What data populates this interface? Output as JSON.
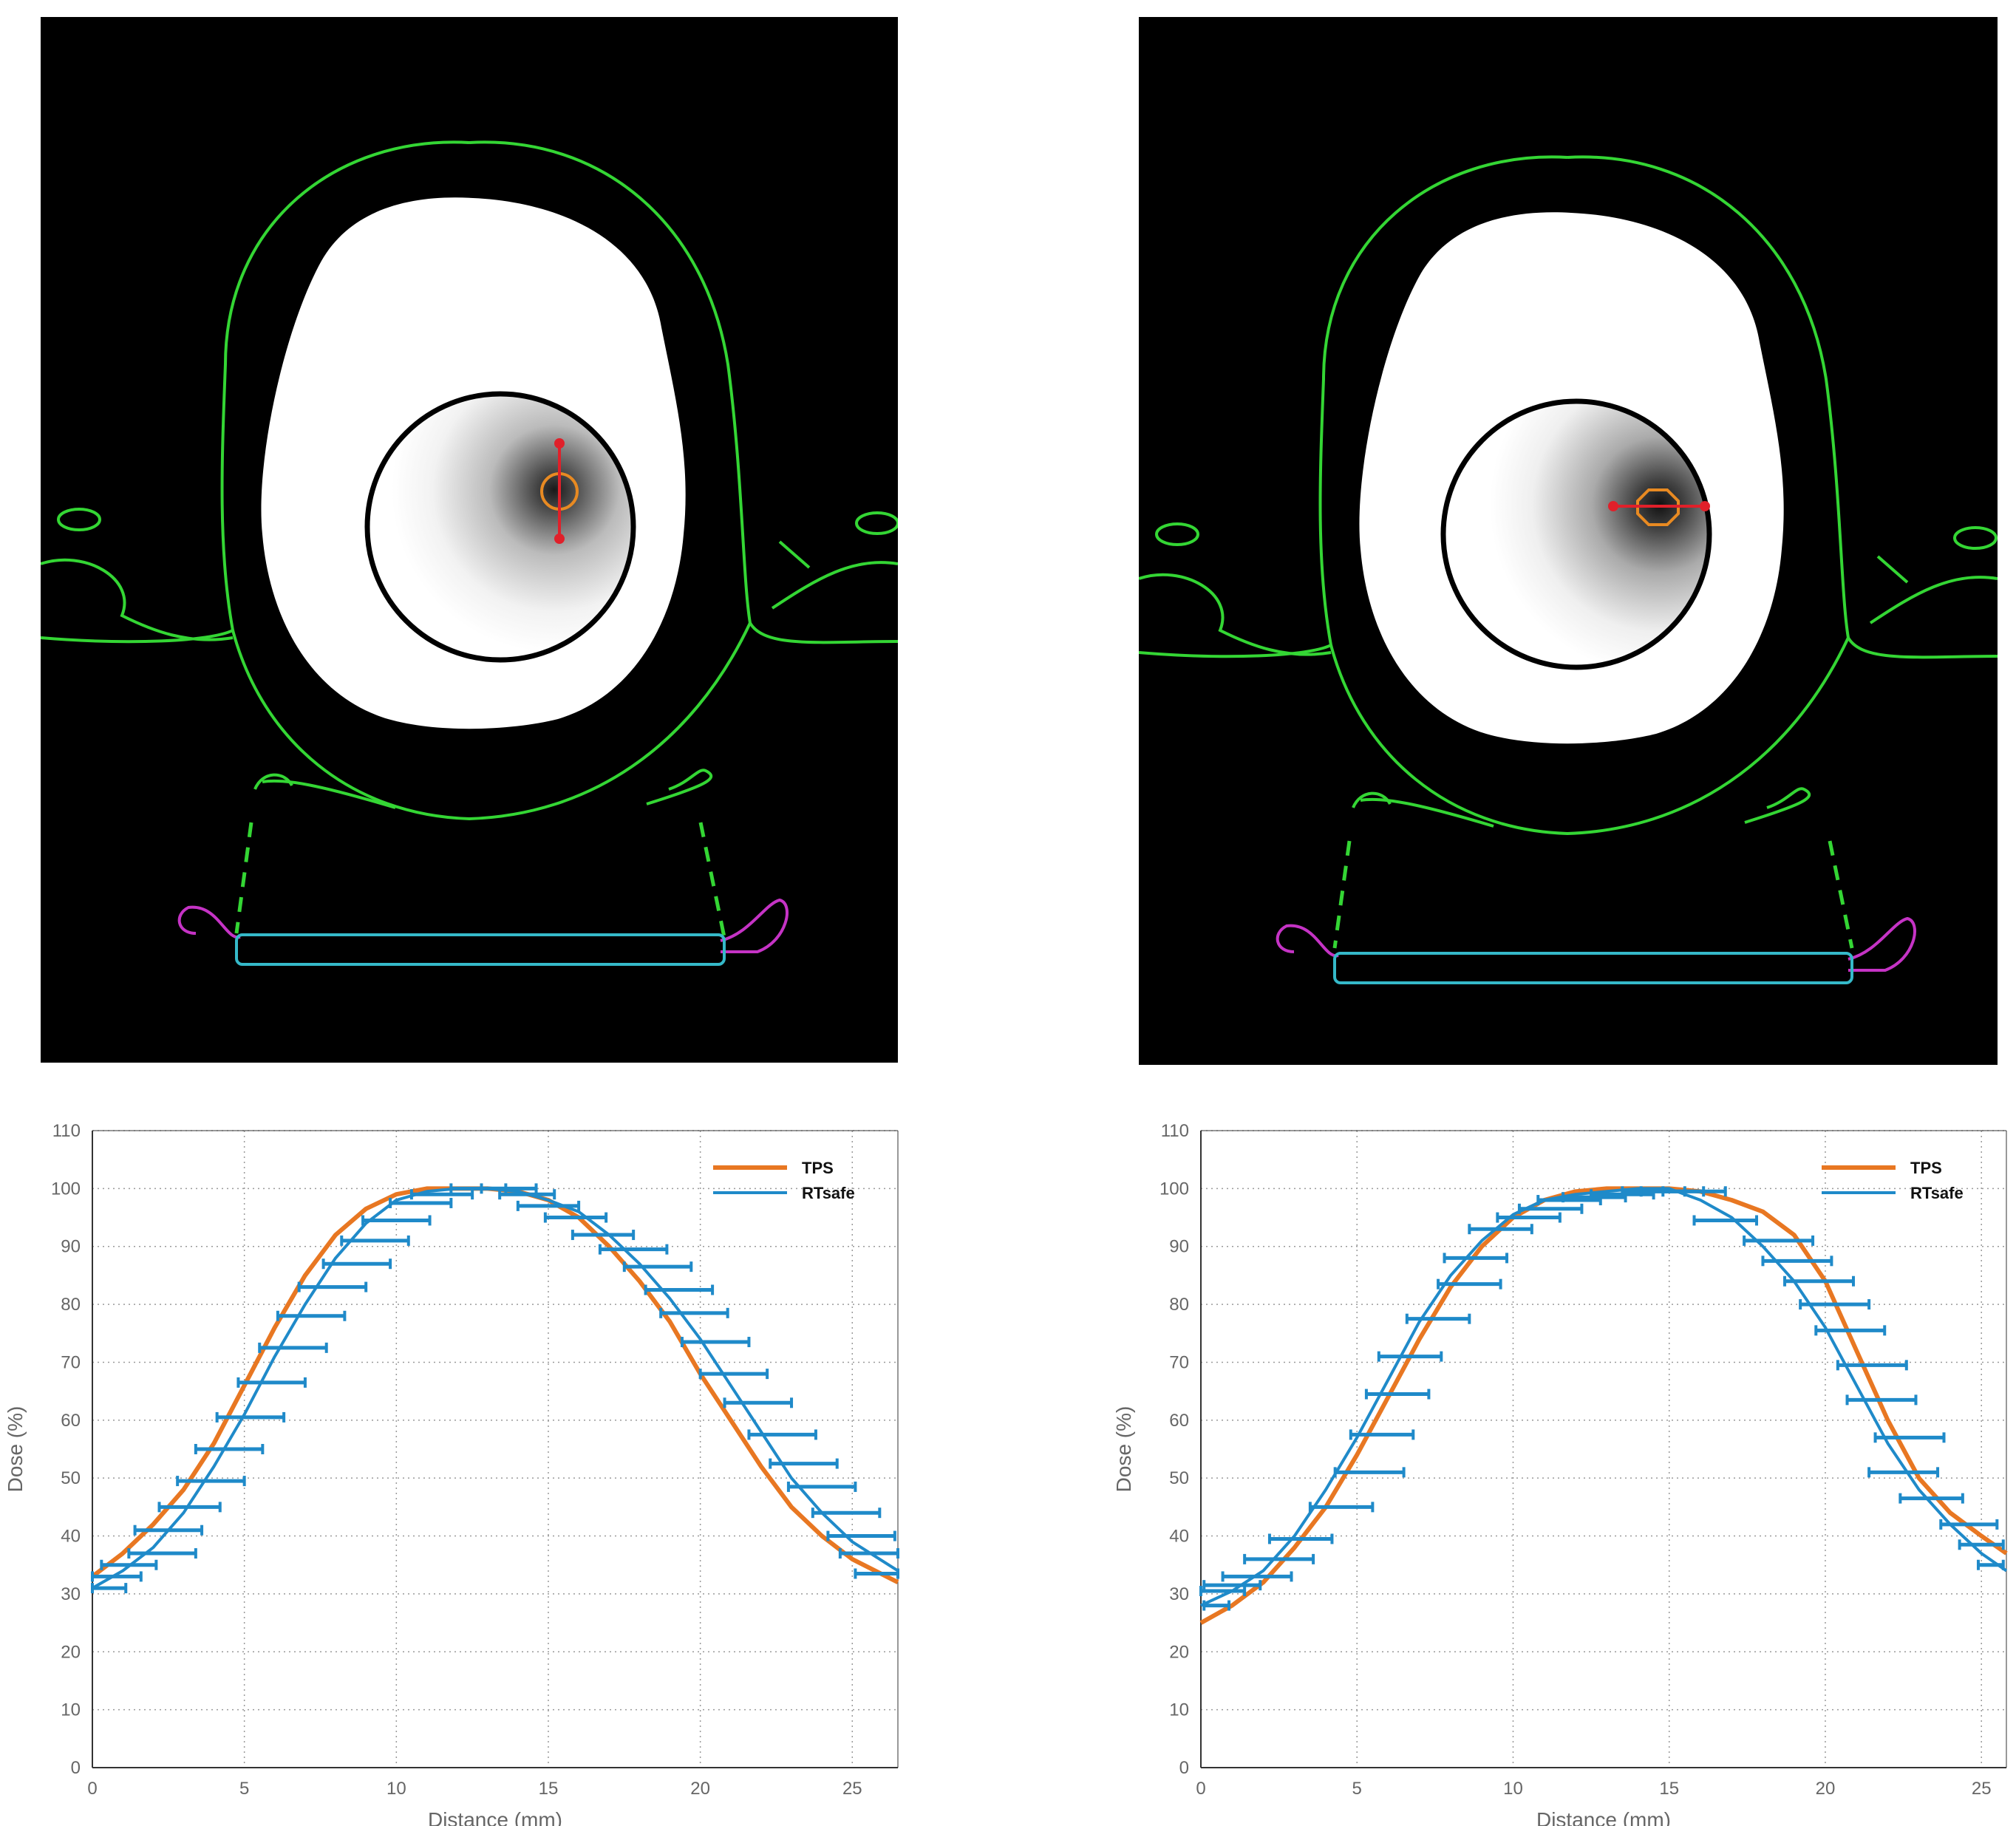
{
  "colors": {
    "tps": "#E87722",
    "rtsafe": "#1F8AC9",
    "body_contour": "#34D634",
    "couch": "#C533C5",
    "couch_base": "#35B9C9",
    "marker": "#E0202A",
    "target_contour": "#E88A22",
    "ring": "#000000"
  },
  "images": [
    {
      "name": "ct-left",
      "marker_direction": "vertical"
    },
    {
      "name": "ct-right",
      "marker_direction": "horizontal"
    }
  ],
  "chart_data": [
    {
      "type": "line",
      "xlabel": "Distance (mm)",
      "ylabel": "Dose (%)",
      "xlim": [
        0,
        26.5
      ],
      "ylim": [
        0,
        110
      ],
      "xticks": [
        0,
        5,
        10,
        15,
        20,
        25
      ],
      "yticks": [
        0,
        10,
        20,
        30,
        40,
        50,
        60,
        70,
        80,
        90,
        100,
        110
      ],
      "grid": "dotted",
      "legend_position": "top-right",
      "legend": [
        "TPS",
        "RTsafe"
      ],
      "series": [
        {
          "name": "TPS",
          "x": [
            0,
            1,
            2,
            3,
            4,
            5,
            6,
            7,
            8,
            9,
            10,
            11,
            12,
            13,
            14,
            15,
            16,
            17,
            18,
            19,
            20,
            21,
            22,
            23,
            24,
            25,
            26.5
          ],
          "y": [
            33,
            37,
            42,
            48,
            56,
            66,
            76,
            85,
            92,
            96.5,
            99,
            100,
            100,
            100,
            99.5,
            98,
            95,
            90,
            84,
            77,
            68,
            60,
            52,
            45,
            40,
            36,
            32
          ]
        },
        {
          "name": "RTsafe",
          "x": [
            0,
            1,
            2,
            3,
            4,
            5,
            6,
            7,
            8,
            9,
            10,
            11,
            12,
            13,
            14,
            15,
            16,
            17,
            18,
            19,
            20,
            21,
            22,
            23,
            24,
            25,
            26.5
          ],
          "y": [
            31,
            34,
            38,
            44,
            52,
            61,
            71,
            80,
            88,
            94,
            98,
            99.5,
            100,
            100,
            99.5,
            98,
            96,
            92,
            87,
            81,
            74,
            66,
            58,
            50,
            44,
            39,
            34
          ]
        }
      ],
      "errorbars": {
        "y": [
          31,
          33,
          35,
          37,
          41,
          45,
          49.5,
          55,
          60.5,
          66.5,
          72.5,
          78,
          83,
          87,
          91,
          94.5,
          97.5,
          99,
          100,
          100,
          99,
          97,
          95,
          92,
          89.5,
          86.5,
          82.5,
          78.5,
          73.5,
          68,
          63,
          57.5,
          52.5,
          48.5,
          44,
          40,
          37,
          33.5
        ],
        "x": [
          0.5,
          0.8,
          1.2,
          2.3,
          2.5,
          3.2,
          3.9,
          4.5,
          5.2,
          5.9,
          6.6,
          7.2,
          7.9,
          8.7,
          9.3,
          10,
          10.8,
          11.5,
          12.7,
          13.7,
          14.3,
          15.0,
          15.9,
          16.8,
          17.8,
          18.6,
          19.3,
          19.8,
          20.5,
          21.1,
          21.9,
          22.7,
          23.4,
          24.0,
          24.8,
          25.3,
          25.6,
          26.0
        ],
        "xerr": [
          0.6,
          0.8,
          0.9,
          1.1,
          1.1,
          1.0,
          1.1,
          1.1,
          1.1,
          1.1,
          1.1,
          1.1,
          1.1,
          1.1,
          1.1,
          1.1,
          1.0,
          1.0,
          0.9,
          0.9,
          0.9,
          1.0,
          1.0,
          1.0,
          1.1,
          1.1,
          1.1,
          1.1,
          1.1,
          1.1,
          1.1,
          1.1,
          1.1,
          1.1,
          1.1,
          1.1,
          1.0,
          0.9
        ]
      }
    },
    {
      "type": "line",
      "xlabel": "Distance (mm)",
      "ylabel": "Dose (%)",
      "xlim": [
        0,
        25.8
      ],
      "ylim": [
        0,
        110
      ],
      "xticks": [
        0,
        5,
        10,
        15,
        20,
        25
      ],
      "yticks": [
        0,
        10,
        20,
        30,
        40,
        50,
        60,
        70,
        80,
        90,
        100,
        110
      ],
      "grid": "dotted",
      "legend_position": "top-right",
      "legend": [
        "TPS",
        "RTsafe"
      ],
      "series": [
        {
          "name": "TPS",
          "x": [
            0,
            1,
            2,
            3,
            4,
            5,
            6,
            7,
            8,
            9,
            10,
            11,
            12,
            13,
            14,
            15,
            16,
            17,
            18,
            19,
            20,
            21,
            22,
            23,
            24,
            25,
            25.8
          ],
          "y": [
            25,
            28,
            32,
            38,
            45,
            54,
            64,
            74,
            83,
            90,
            95,
            98,
            99.5,
            100,
            100,
            100,
            99.5,
            98,
            96,
            92,
            84,
            72,
            60,
            50,
            44,
            40,
            37
          ]
        },
        {
          "name": "RTsafe",
          "x": [
            0,
            1,
            2,
            3,
            4,
            5,
            6,
            7,
            8,
            9,
            10,
            11,
            12,
            13,
            14,
            15,
            16,
            17,
            18,
            19,
            20,
            21,
            22,
            23,
            24,
            25,
            25.8
          ],
          "y": [
            28,
            30.5,
            34,
            40,
            48,
            57,
            67,
            77,
            85,
            91,
            95.5,
            98,
            99,
            99.5,
            100,
            100,
            98,
            95,
            90,
            84,
            76,
            66,
            56,
            48,
            42,
            37,
            34
          ]
        }
      ],
      "errorbars": {
        "y": [
          28,
          30.5,
          31.5,
          33,
          36,
          39.5,
          45,
          51,
          57.5,
          64.5,
          71,
          77.5,
          83.5,
          88,
          93,
          95,
          96.5,
          98,
          98.5,
          99,
          99.5,
          99.5,
          99.5,
          94.5,
          91,
          87.5,
          84,
          80,
          75.5,
          69.5,
          63.5,
          57,
          51,
          46.5,
          42,
          38.5,
          35
        ],
        "x": [
          0.5,
          0.7,
          1.0,
          1.8,
          2.5,
          3.2,
          4.5,
          5.4,
          5.8,
          6.3,
          6.7,
          7.6,
          8.6,
          8.8,
          9.6,
          10.5,
          11.2,
          11.8,
          12.6,
          13.5,
          14.5,
          15.1,
          15.8,
          16.8,
          18.5,
          19.1,
          19.8,
          20.3,
          20.8,
          21.5,
          21.8,
          22.7,
          22.5,
          23.4,
          24.6,
          25.0,
          25.3
        ],
        "xerr": [
          0.4,
          0.7,
          0.9,
          1.1,
          1.1,
          1.0,
          1.0,
          1.1,
          1.0,
          1.0,
          1.0,
          1.0,
          1.0,
          1.0,
          1.0,
          1.0,
          1.0,
          1.0,
          1.0,
          1.0,
          1.0,
          1.0,
          1.0,
          1.0,
          1.1,
          1.1,
          1.1,
          1.1,
          1.1,
          1.1,
          1.1,
          1.1,
          1.1,
          1.0,
          0.9,
          0.7,
          0.4
        ]
      }
    }
  ]
}
